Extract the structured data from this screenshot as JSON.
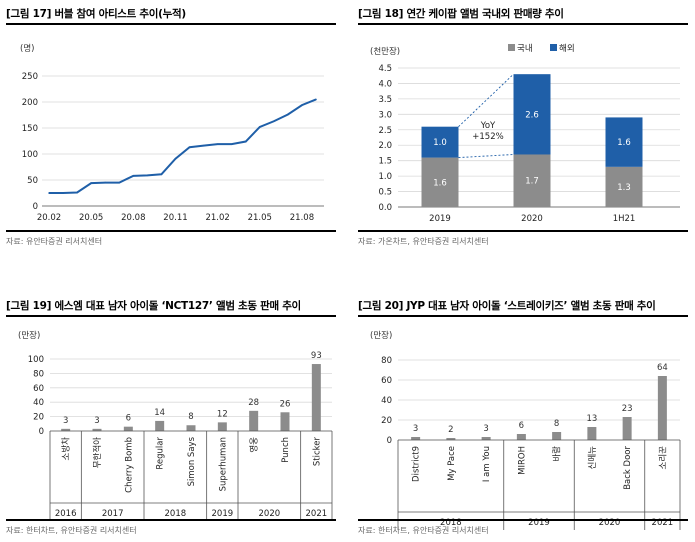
{
  "panels": [
    {
      "title": "[그림 17] 버블 참여 아티스트 추이(누적)",
      "source": "자료: 유안타증권 리서치센터",
      "unit": "(명)"
    },
    {
      "title": "[그림 18] 연간 케이팝 앨범 국내외 판매량 추이",
      "source": "자료: 가온차트, 유안타증권 리서치센터",
      "unit": "(천만장)",
      "annotation": [
        "YoY",
        "+152%"
      ]
    },
    {
      "title": "[그림 19] 에스엠 대표 남자 아이돌 ‘NCT127’ 앨범 초동 판매 추이",
      "source": "자료: 한터차트, 유안타증권 리서치센터",
      "unit": "(만장)"
    },
    {
      "title": "[그림 20] JYP 대표 남자 아이돌 ‘스트레이키즈’ 앨범 초동 판매 추이",
      "source": "자료: 한터차트, 유안타증권 리서치센터",
      "unit": "(만장)"
    }
  ],
  "chart_data": [
    {
      "type": "line",
      "title": "[그림 17] 버블 참여 아티스트 추이(누적)",
      "ylabel": "(명)",
      "ylim": [
        0,
        250
      ],
      "yticks": [
        0,
        50,
        100,
        150,
        200,
        250
      ],
      "x_ticks": [
        "20.02",
        "20.05",
        "20.08",
        "20.11",
        "21.02",
        "21.05",
        "21.08"
      ],
      "x": [
        "20.02",
        "20.03",
        "20.04",
        "20.05",
        "20.06",
        "20.07",
        "20.08",
        "20.09",
        "20.10",
        "20.11",
        "20.12",
        "21.01",
        "21.02",
        "21.03",
        "21.04",
        "21.05",
        "21.06",
        "21.07",
        "21.08",
        "21.09"
      ],
      "values": [
        25,
        25,
        26,
        44,
        45,
        45,
        58,
        59,
        61,
        91,
        113,
        116,
        119,
        119,
        124,
        152,
        163,
        176,
        194,
        205
      ],
      "color": "#1f5fa8",
      "grid": true
    },
    {
      "type": "bar",
      "stacked": true,
      "title": "[그림 18] 연간 케이팝 앨범 국내외 판매량 추이",
      "ylabel": "(천만장)",
      "ylim": [
        0,
        4.5
      ],
      "yticks": [
        0.0,
        0.5,
        1.0,
        1.5,
        2.0,
        2.5,
        3.0,
        3.5,
        4.0,
        4.5
      ],
      "categories": [
        "2019",
        "2020",
        "1H21"
      ],
      "series": [
        {
          "name": "국내",
          "values": [
            1.6,
            1.7,
            1.3
          ],
          "color": "#8c8c8c"
        },
        {
          "name": "해외",
          "values": [
            1.0,
            2.6,
            1.6
          ],
          "color": "#1f5fa8"
        }
      ],
      "legend": "top-left",
      "grid": true
    },
    {
      "type": "bar",
      "title": "[그림 19] 에스엠 대표 남자 아이돌 ‘NCT127’ 앨범 초동 판매 추이",
      "ylabel": "(만장)",
      "ylim": [
        0,
        100
      ],
      "yticks": [
        0,
        20,
        40,
        60,
        80,
        100
      ],
      "categories": [
        "소방차",
        "무한적아",
        "Cherry Bomb",
        "Regular",
        "Simon Says",
        "Superhuman",
        "영웅",
        "Punch",
        "Sticker"
      ],
      "values": [
        3,
        3,
        6,
        14,
        8,
        12,
        28,
        26,
        93
      ],
      "groups": [
        {
          "label": "2016",
          "count": 1
        },
        {
          "label": "2017",
          "count": 2
        },
        {
          "label": "2018",
          "count": 2
        },
        {
          "label": "2019",
          "count": 1
        },
        {
          "label": "2020",
          "count": 2
        },
        {
          "label": "2021",
          "count": 1
        }
      ],
      "color": "#8c8c8c",
      "grid": true
    },
    {
      "type": "bar",
      "title": "[그림 20] JYP 대표 남자 아이돌 ‘스트레이키즈’ 앨범 초동 판매 추이",
      "ylabel": "(만장)",
      "ylim": [
        0,
        80
      ],
      "yticks": [
        0,
        20,
        40,
        60,
        80
      ],
      "categories": [
        "District9",
        "My Pace",
        "I am You",
        "MIROH",
        "바람",
        "신메뉴",
        "Back Door",
        "소리꾼"
      ],
      "values": [
        3,
        2,
        3,
        6,
        8,
        13,
        23,
        64
      ],
      "groups": [
        {
          "label": "2018",
          "count": 3
        },
        {
          "label": "2019",
          "count": 2
        },
        {
          "label": "2020",
          "count": 2
        },
        {
          "label": "2021",
          "count": 1
        }
      ],
      "color": "#8c8c8c",
      "grid": true
    }
  ]
}
